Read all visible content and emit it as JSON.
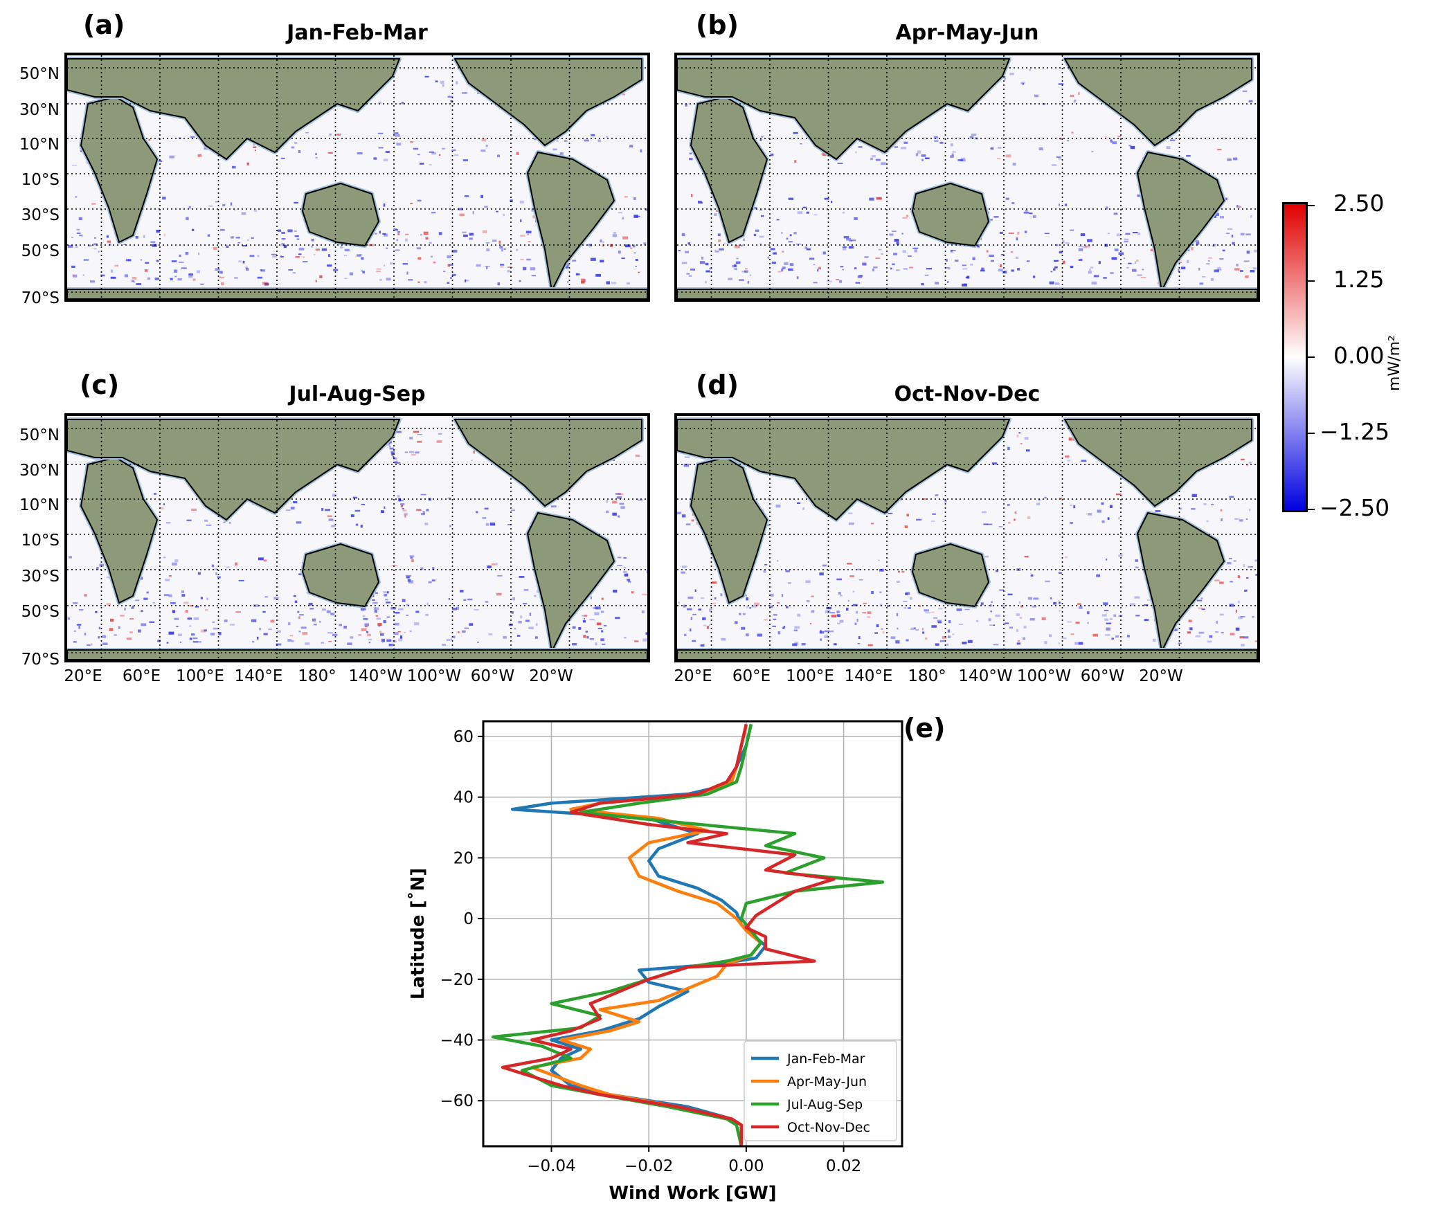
{
  "panels": [
    {
      "letter": "(a)",
      "title": "Jan-Feb-Mar"
    },
    {
      "letter": "(b)",
      "title": "Apr-May-Jun"
    },
    {
      "letter": "(c)",
      "title": "Jul-Aug-Sep"
    },
    {
      "letter": "(d)",
      "title": "Oct-Nov-Dec"
    },
    {
      "letter": "(e)"
    }
  ],
  "map_axes": {
    "lat_ticks": [
      "50°N",
      "30°N",
      "10°N",
      "10°S",
      "30°S",
      "50°S",
      "70°S"
    ],
    "lon_ticks": [
      "20°E",
      "60°E",
      "100°E",
      "140°E",
      "180°",
      "140°W",
      "100°W",
      "60°W",
      "20°W"
    ]
  },
  "colorbar": {
    "ticks": [
      "2.50",
      "1.25",
      "0.00",
      "−1.25",
      "−2.50"
    ],
    "unit": "mW/m²",
    "colors": {
      "max": "#e00000",
      "mid": "#ffffff",
      "min": "#0000e0"
    }
  },
  "chart_data": {
    "type": "line",
    "xlabel": "Wind Work [GW]",
    "ylabel": "Latitude [˚N]",
    "xlim": [
      -0.054,
      0.032
    ],
    "ylim": [
      -75,
      65
    ],
    "xticks": [
      "−0.04",
      "−0.02",
      "0.00",
      "0.02"
    ],
    "xtick_values": [
      -0.04,
      -0.02,
      0.0,
      0.02
    ],
    "yticks": [
      "60",
      "40",
      "20",
      "0",
      "−20",
      "−40",
      "−60"
    ],
    "ytick_values": [
      60,
      40,
      20,
      0,
      -20,
      -40,
      -60
    ],
    "grid": true,
    "legend": "lower-right",
    "series": [
      {
        "name": "Jan-Feb-Mar",
        "color": "#1f77b4",
        "points": [
          [
            -0.001,
            -75
          ],
          [
            -0.001,
            -68
          ],
          [
            -0.003,
            -66
          ],
          [
            -0.012,
            -62
          ],
          [
            -0.028,
            -58
          ],
          [
            -0.036,
            -55
          ],
          [
            -0.04,
            -50
          ],
          [
            -0.038,
            -46
          ],
          [
            -0.034,
            -43
          ],
          [
            -0.04,
            -40
          ],
          [
            -0.03,
            -37
          ],
          [
            -0.022,
            -33
          ],
          [
            -0.018,
            -29
          ],
          [
            -0.012,
            -24
          ],
          [
            -0.02,
            -21
          ],
          [
            -0.022,
            -17
          ],
          [
            -0.006,
            -15
          ],
          [
            0.002,
            -13
          ],
          [
            0.004,
            -9
          ],
          [
            0.001,
            -5
          ],
          [
            -0.001,
            -2
          ],
          [
            -0.002,
            2
          ],
          [
            -0.005,
            6
          ],
          [
            -0.01,
            10
          ],
          [
            -0.018,
            14
          ],
          [
            -0.02,
            19
          ],
          [
            -0.018,
            23
          ],
          [
            -0.01,
            28
          ],
          [
            -0.02,
            33
          ],
          [
            -0.048,
            36
          ],
          [
            -0.04,
            38
          ],
          [
            -0.012,
            41
          ],
          [
            -0.004,
            44
          ],
          [
            -0.002,
            50
          ],
          [
            0.0,
            57
          ],
          [
            0.001,
            64
          ]
        ]
      },
      {
        "name": "Apr-May-Jun",
        "color": "#ff7f0e",
        "points": [
          [
            -0.001,
            -75
          ],
          [
            -0.001,
            -68
          ],
          [
            -0.003,
            -66
          ],
          [
            -0.014,
            -62
          ],
          [
            -0.028,
            -58
          ],
          [
            -0.034,
            -55
          ],
          [
            -0.044,
            -49
          ],
          [
            -0.034,
            -46
          ],
          [
            -0.032,
            -43
          ],
          [
            -0.038,
            -40
          ],
          [
            -0.028,
            -37
          ],
          [
            -0.022,
            -34
          ],
          [
            -0.03,
            -30
          ],
          [
            -0.018,
            -27
          ],
          [
            -0.012,
            -23
          ],
          [
            -0.006,
            -19
          ],
          [
            -0.004,
            -15
          ],
          [
            0.001,
            -12
          ],
          [
            0.003,
            -8
          ],
          [
            0.0,
            -4
          ],
          [
            -0.002,
            0
          ],
          [
            -0.006,
            5
          ],
          [
            -0.014,
            9
          ],
          [
            -0.022,
            14
          ],
          [
            -0.024,
            20
          ],
          [
            -0.02,
            25
          ],
          [
            -0.008,
            29
          ],
          [
            -0.018,
            33
          ],
          [
            -0.036,
            36
          ],
          [
            -0.03,
            38
          ],
          [
            -0.01,
            41
          ],
          [
            -0.003,
            45
          ],
          [
            -0.002,
            50
          ],
          [
            -0.001,
            57
          ],
          [
            0.0,
            64
          ]
        ]
      },
      {
        "name": "Jul-Aug-Sep",
        "color": "#2ca02c",
        "points": [
          [
            -0.001,
            -75
          ],
          [
            -0.002,
            -68
          ],
          [
            -0.004,
            -66
          ],
          [
            -0.016,
            -62
          ],
          [
            -0.03,
            -58
          ],
          [
            -0.04,
            -55
          ],
          [
            -0.046,
            -50
          ],
          [
            -0.036,
            -46
          ],
          [
            -0.042,
            -42
          ],
          [
            -0.052,
            -39
          ],
          [
            -0.034,
            -36
          ],
          [
            -0.03,
            -32
          ],
          [
            -0.04,
            -28
          ],
          [
            -0.028,
            -24
          ],
          [
            -0.02,
            -20
          ],
          [
            -0.012,
            -16
          ],
          [
            -0.004,
            -14
          ],
          [
            0.001,
            -12
          ],
          [
            0.003,
            -8
          ],
          [
            0.001,
            -4
          ],
          [
            -0.001,
            0
          ],
          [
            0.0,
            5
          ],
          [
            0.01,
            9
          ],
          [
            0.028,
            12
          ],
          [
            0.008,
            15
          ],
          [
            0.016,
            20
          ],
          [
            0.004,
            24
          ],
          [
            0.01,
            28
          ],
          [
            -0.016,
            32
          ],
          [
            -0.034,
            35
          ],
          [
            -0.022,
            38
          ],
          [
            -0.008,
            41
          ],
          [
            -0.002,
            45
          ],
          [
            -0.001,
            50
          ],
          [
            0.0,
            57
          ],
          [
            0.001,
            64
          ]
        ]
      },
      {
        "name": "Oct-Nov-Dec",
        "color": "#d62728",
        "points": [
          [
            -0.001,
            -75
          ],
          [
            -0.001,
            -68
          ],
          [
            -0.003,
            -66
          ],
          [
            -0.014,
            -62
          ],
          [
            -0.03,
            -58
          ],
          [
            -0.038,
            -55
          ],
          [
            -0.05,
            -49
          ],
          [
            -0.04,
            -46
          ],
          [
            -0.036,
            -43
          ],
          [
            -0.044,
            -40
          ],
          [
            -0.036,
            -37
          ],
          [
            -0.03,
            -33
          ],
          [
            -0.032,
            -28
          ],
          [
            -0.026,
            -24
          ],
          [
            -0.02,
            -20
          ],
          [
            -0.012,
            -16
          ],
          [
            0.014,
            -14
          ],
          [
            0.004,
            -10
          ],
          [
            0.004,
            -6
          ],
          [
            0.0,
            -3
          ],
          [
            0.002,
            1
          ],
          [
            0.006,
            5
          ],
          [
            0.01,
            9
          ],
          [
            0.018,
            13
          ],
          [
            0.004,
            16
          ],
          [
            0.01,
            21
          ],
          [
            -0.012,
            25
          ],
          [
            -0.004,
            28
          ],
          [
            -0.02,
            31
          ],
          [
            -0.036,
            35
          ],
          [
            -0.03,
            38
          ],
          [
            -0.01,
            41
          ],
          [
            -0.004,
            45
          ],
          [
            -0.002,
            50
          ],
          [
            -0.001,
            57
          ],
          [
            0.0,
            64
          ]
        ]
      }
    ]
  }
}
